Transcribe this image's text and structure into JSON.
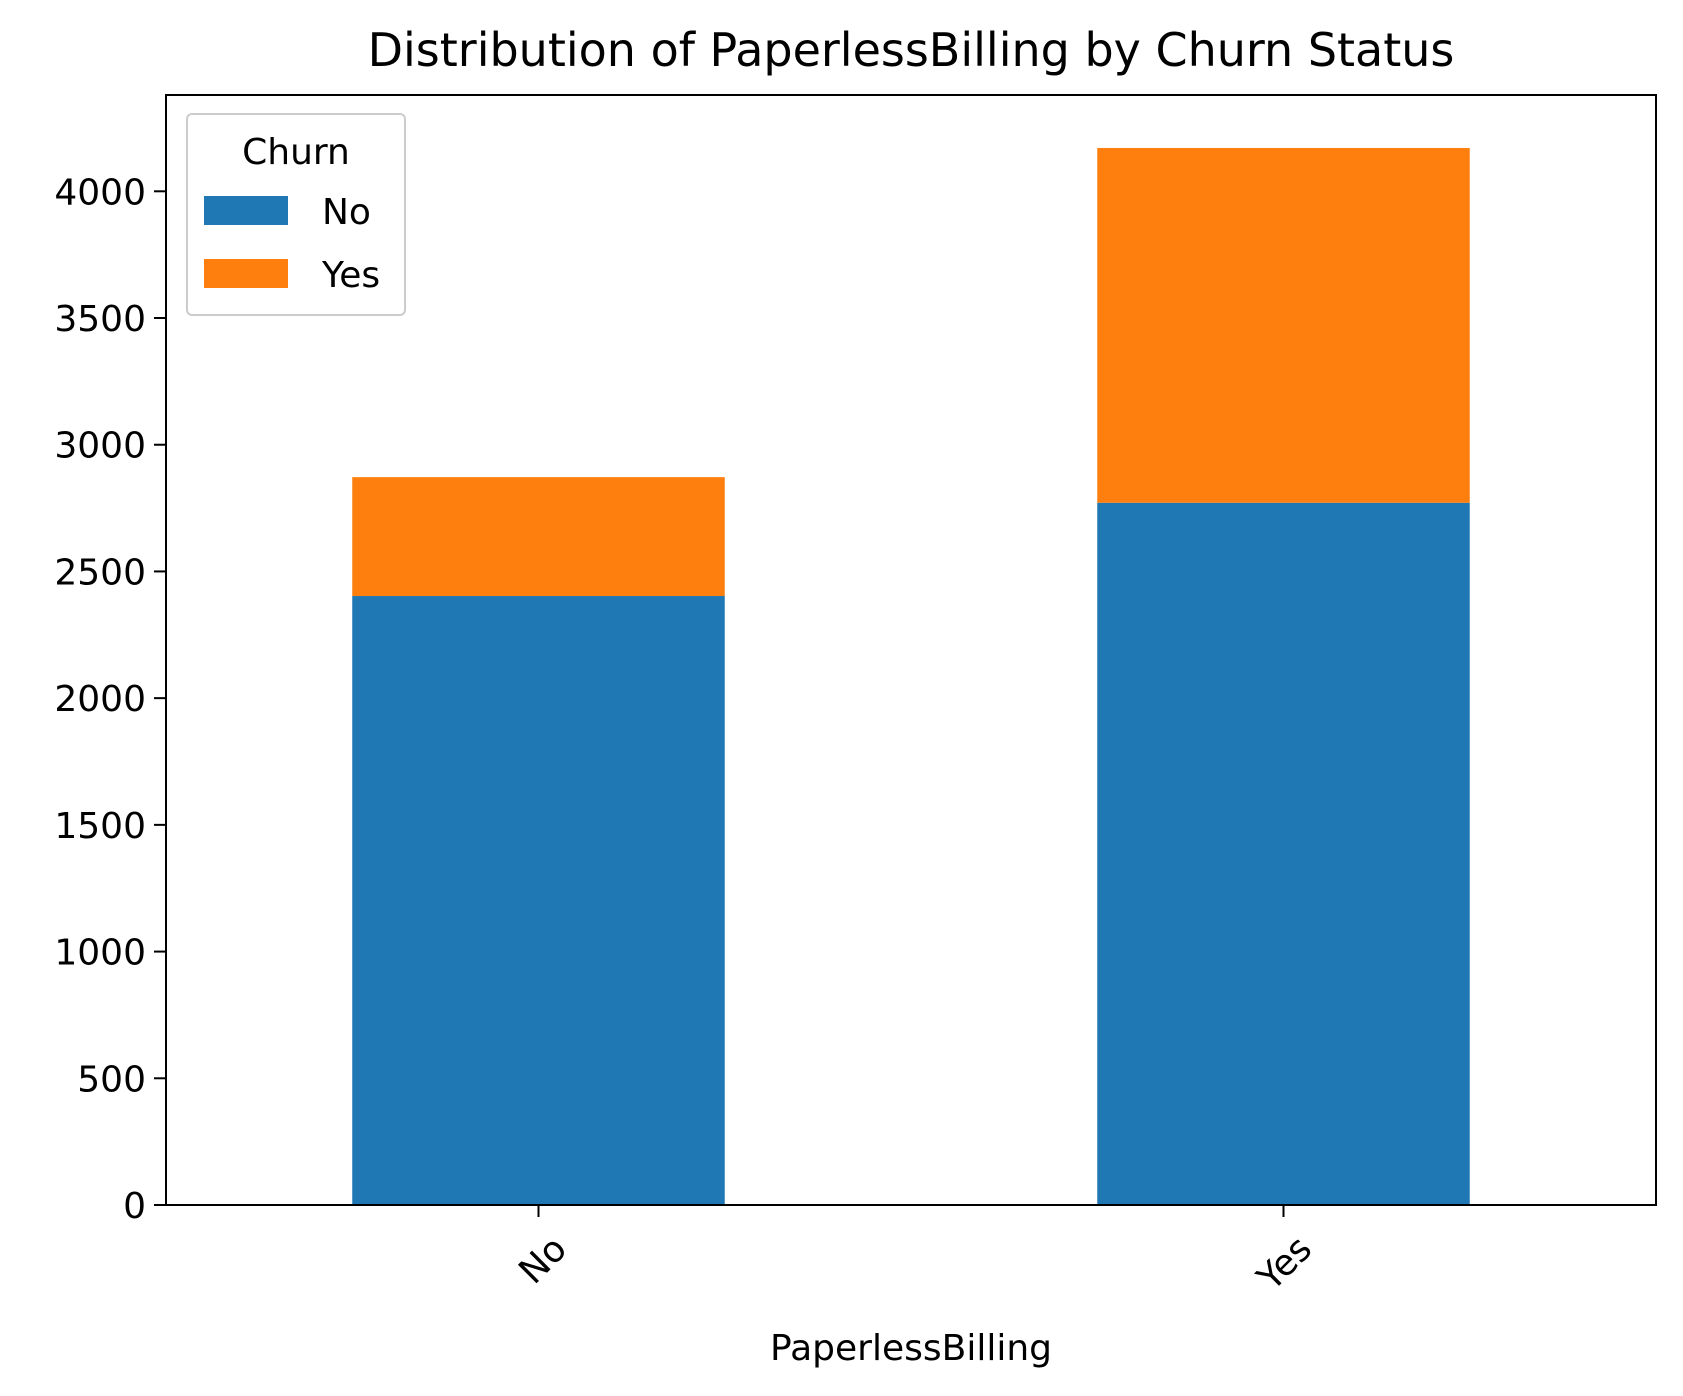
{
  "chart_data": {
    "type": "bar",
    "stacked": true,
    "title": "Distribution of PaperlessBilling by Churn Status",
    "xlabel": "PaperlessBilling",
    "ylabel": "",
    "categories": [
      "No",
      "Yes"
    ],
    "series": [
      {
        "name": "No",
        "values": [
          2403,
          2771
        ],
        "color": "#1f77b4"
      },
      {
        "name": "Yes",
        "values": [
          469,
          1400
        ],
        "color": "#ff7f0e"
      }
    ],
    "ylim": [
      0,
      4380
    ],
    "yticks": [
      0,
      500,
      1000,
      1500,
      2000,
      2500,
      3000,
      3500,
      4000
    ],
    "grid": false,
    "legend": {
      "title": "Churn",
      "position": "top-left"
    }
  }
}
